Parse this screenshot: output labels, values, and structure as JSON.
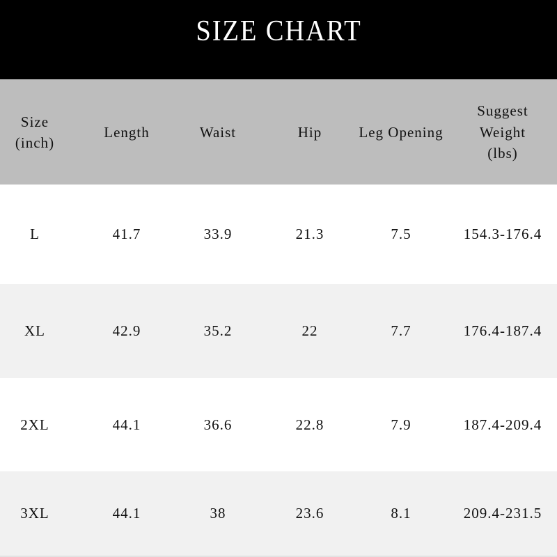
{
  "colors": {
    "banner_bg": "#000000",
    "banner_text": "#ffffff",
    "header_bg": "#bdbdbd",
    "row_bg": "#ffffff",
    "row_alt_bg": "#f1f1f1",
    "text": "#111111"
  },
  "chart_data": {
    "type": "table",
    "title": "SIZE CHART",
    "columns": [
      "Size (inch)",
      "Length",
      "Waist",
      "Hip",
      "Leg Opening",
      "Suggest Weight (lbs)"
    ],
    "column_header_lines": [
      [
        "Size",
        "(inch)"
      ],
      [
        "Length"
      ],
      [
        "Waist"
      ],
      [
        "Hip"
      ],
      [
        "Leg Opening"
      ],
      [
        "Suggest",
        "Weight",
        "(lbs)"
      ]
    ],
    "rows": [
      [
        "L",
        "41.7",
        "33.9",
        "21.3",
        "7.5",
        "154.3-176.4"
      ],
      [
        "XL",
        "42.9",
        "35.2",
        "22",
        "7.7",
        "176.4-187.4"
      ],
      [
        "2XL",
        "44.1",
        "36.6",
        "22.8",
        "7.9",
        "187.4-209.4"
      ],
      [
        "3XL",
        "44.1",
        "38",
        "23.6",
        "8.1",
        "209.4-231.5"
      ]
    ],
    "layout": {
      "header_position": "top",
      "row_striping": "white / light-gray alternating",
      "grid": false
    }
  }
}
